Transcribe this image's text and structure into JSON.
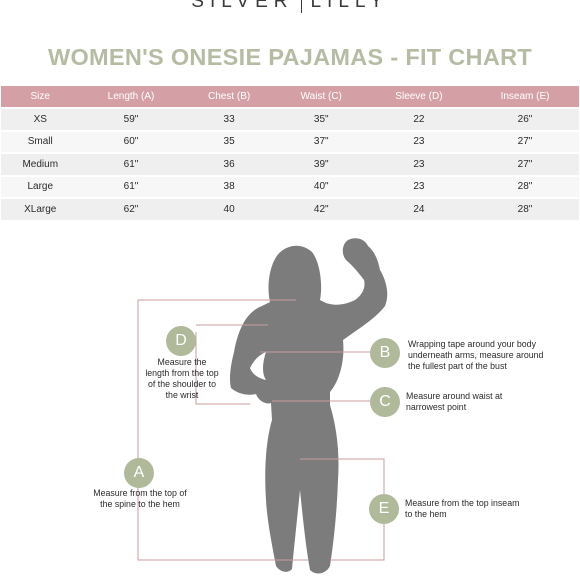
{
  "brand": {
    "left": "SILVER",
    "right": "LILLY"
  },
  "title": "WOMEN'S ONESIE PAJAMAS - FIT CHART",
  "table": {
    "headers": [
      "Size",
      "Length (A)",
      "Chest (B)",
      "Waist (C)",
      "Sleeve (D)",
      "Inseam (E)"
    ],
    "rows": [
      [
        "XS",
        "59\"",
        "33",
        "35\"",
        "22",
        "26\""
      ],
      [
        "Small",
        "60\"",
        "35",
        "37\"",
        "23",
        "27\""
      ],
      [
        "Medium",
        "61\"",
        "36",
        "39\"",
        "23",
        "27\""
      ],
      [
        "Large",
        "61\"",
        "38",
        "40\"",
        "23",
        "28\""
      ],
      [
        "XLarge",
        "62\"",
        "40",
        "42\"",
        "24",
        "28\""
      ]
    ]
  },
  "measures": {
    "a": {
      "letter": "A",
      "line1": "Measure from the top of",
      "line2": "the spine to the hem"
    },
    "b": {
      "letter": "B",
      "line1": "Wrapping tape around your body",
      "line2": "underneath arms, measure around",
      "line3": "the fullest part of the bust"
    },
    "c": {
      "letter": "C",
      "line1": "Measure around waist at",
      "line2": "narrowest point"
    },
    "d": {
      "letter": "D",
      "line1": "Measure the",
      "line2": "length from the top",
      "line3": "of the shoulder to",
      "line4": "the wrist"
    },
    "e": {
      "letter": "E",
      "line1": "Measure from the top inseam",
      "line2": "to the hem"
    }
  },
  "colors": {
    "accent_green": "#b1b99b",
    "title_green": "#b6bca4",
    "header_pink": "#d5a0a5",
    "line_pink": "#c99ca0",
    "silhouette": "#7c7c7c"
  }
}
